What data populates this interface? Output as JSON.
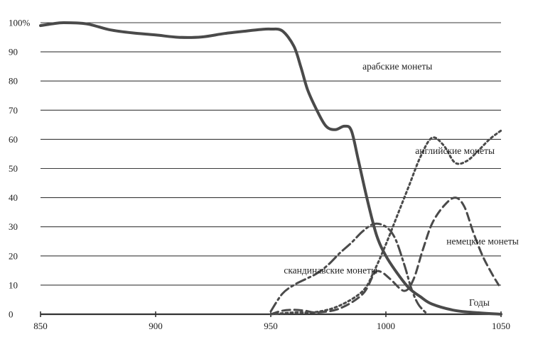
{
  "chart_data": {
    "type": "line",
    "xlabel": "Годы",
    "ylabel": "",
    "xlim": [
      850,
      1050
    ],
    "ylim": [
      0,
      100
    ],
    "x_ticks": [
      "850",
      "900",
      "950",
      "1000",
      "1050"
    ],
    "y_ticks": [
      "0",
      "10",
      "20",
      "30",
      "40",
      "50",
      "60",
      "70",
      "80",
      "90",
      "100%"
    ],
    "grid": "horizontal",
    "series": [
      {
        "name": "арабские монеты",
        "style": "solid",
        "color": "#4a4a4a",
        "points": [
          [
            850,
            99
          ],
          [
            855,
            99.6
          ],
          [
            860,
            100
          ],
          [
            870,
            99.6
          ],
          [
            880,
            97.6
          ],
          [
            890,
            96.5
          ],
          [
            900,
            95.8
          ],
          [
            910,
            95
          ],
          [
            920,
            95.1
          ],
          [
            930,
            96.3
          ],
          [
            940,
            97.2
          ],
          [
            946,
            97.7
          ],
          [
            950,
            97.8
          ],
          [
            955,
            97.2
          ],
          [
            960,
            92
          ],
          [
            963,
            85
          ],
          [
            966,
            77
          ],
          [
            970,
            70
          ],
          [
            974,
            64.5
          ],
          [
            978,
            63.3
          ],
          [
            982,
            64.5
          ],
          [
            985,
            63
          ],
          [
            988,
            53
          ],
          [
            992,
            39
          ],
          [
            996,
            27
          ],
          [
            1000,
            20
          ],
          [
            1005,
            14
          ],
          [
            1010,
            9
          ],
          [
            1015,
            6
          ],
          [
            1020,
            3.5
          ],
          [
            1030,
            1.3
          ],
          [
            1040,
            0.5
          ],
          [
            1050,
            0
          ]
        ]
      },
      {
        "name": "английские монеты",
        "style": "dotted",
        "color": "#4a4a4a",
        "points": [
          [
            950,
            0
          ],
          [
            960,
            0.6
          ],
          [
            970,
            0.8
          ],
          [
            980,
            3
          ],
          [
            990,
            8
          ],
          [
            995,
            15
          ],
          [
            1000,
            24
          ],
          [
            1005,
            34
          ],
          [
            1010,
            44
          ],
          [
            1015,
            54
          ],
          [
            1020,
            60.5
          ],
          [
            1025,
            58
          ],
          [
            1030,
            52
          ],
          [
            1035,
            52.5
          ],
          [
            1040,
            56
          ],
          [
            1045,
            60
          ],
          [
            1050,
            63
          ]
        ]
      },
      {
        "name": "немецкие монеты",
        "style": "dashed",
        "color": "#4a4a4a",
        "points": [
          [
            950,
            0
          ],
          [
            955,
            1.2
          ],
          [
            960,
            1.5
          ],
          [
            965,
            1.2
          ],
          [
            970,
            0.6
          ],
          [
            980,
            2
          ],
          [
            990,
            7
          ],
          [
            995,
            14
          ],
          [
            998,
            14.5
          ],
          [
            1002,
            12
          ],
          [
            1008,
            8
          ],
          [
            1012,
            12
          ],
          [
            1016,
            22
          ],
          [
            1020,
            31
          ],
          [
            1025,
            37
          ],
          [
            1030,
            40
          ],
          [
            1034,
            37
          ],
          [
            1038,
            28
          ],
          [
            1042,
            20
          ],
          [
            1046,
            14
          ],
          [
            1049,
            10
          ]
        ]
      },
      {
        "name": "скандинавские монеты",
        "style": "dashdot",
        "color": "#4a4a4a",
        "points": [
          [
            950,
            1
          ],
          [
            955,
            7
          ],
          [
            960,
            10
          ],
          [
            965,
            12
          ],
          [
            970,
            14
          ],
          [
            975,
            17
          ],
          [
            980,
            21
          ],
          [
            985,
            24.5
          ],
          [
            990,
            28.5
          ],
          [
            995,
            31
          ],
          [
            1000,
            30
          ],
          [
            1004,
            26
          ],
          [
            1008,
            17
          ],
          [
            1011,
            9
          ],
          [
            1014,
            3.5
          ],
          [
            1018,
            0
          ]
        ]
      }
    ],
    "annotations": [
      {
        "text": "арабские монеты",
        "x": 1005,
        "y": 84
      },
      {
        "text": "английские монеты",
        "x": 1030,
        "y": 55
      },
      {
        "text": "немецкие монеты",
        "x": 1042,
        "y": 24
      },
      {
        "text": "скандинавские монеты",
        "x": 976,
        "y": 14
      }
    ]
  }
}
